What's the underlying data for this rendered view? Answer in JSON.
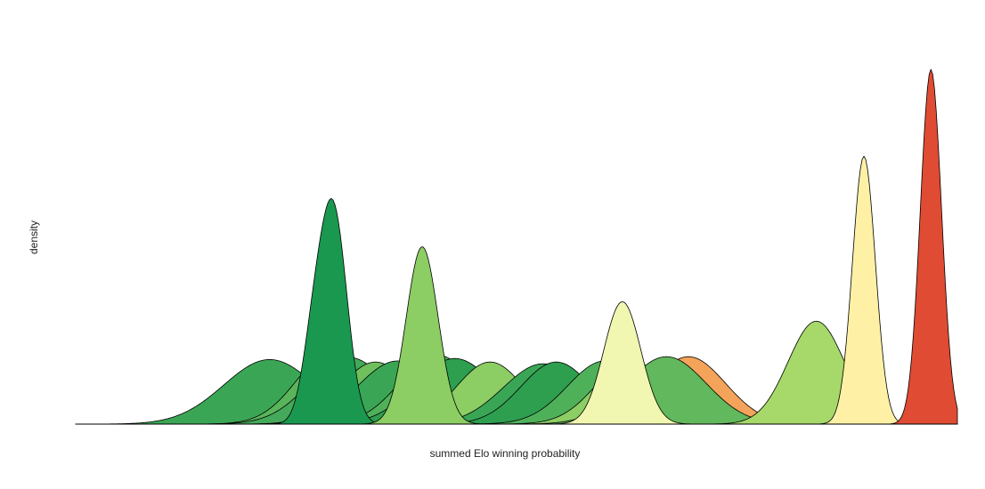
{
  "chart_data": {
    "type": "area",
    "xlabel": "summed Elo winning probability",
    "ylabel": "density",
    "grid": false,
    "legend": "none",
    "xlim": [
      0,
      1
    ],
    "ylim": [
      0,
      1
    ],
    "series": [
      {
        "color": "#f4a35a",
        "components": [
          {
            "mean": 0.695,
            "sd": 0.042,
            "height": 0.19
          }
        ]
      },
      {
        "color": "#3aa655",
        "components": [
          {
            "mean": 0.22,
            "sd": 0.052,
            "height": 0.182
          }
        ]
      },
      {
        "color": "#5ab55a",
        "components": [
          {
            "mean": 0.29,
            "sd": 0.04,
            "height": 0.2
          }
        ]
      },
      {
        "color": "#44a95a",
        "components": [
          {
            "mean": 0.31,
            "sd": 0.045,
            "height": 0.188
          }
        ]
      },
      {
        "color": "#6fbf5d",
        "components": [
          {
            "mean": 0.34,
            "sd": 0.04,
            "height": 0.175
          }
        ]
      },
      {
        "color": "#3aa655",
        "components": [
          {
            "mean": 0.365,
            "sd": 0.045,
            "height": 0.178
          }
        ]
      },
      {
        "color": "#4fb05a",
        "components": [
          {
            "mean": 0.41,
            "sd": 0.042,
            "height": 0.195
          }
        ]
      },
      {
        "color": "#2e9e4f",
        "components": [
          {
            "mean": 0.43,
            "sd": 0.045,
            "height": 0.185
          }
        ]
      },
      {
        "color": "#8ccd64",
        "components": [
          {
            "mean": 0.47,
            "sd": 0.038,
            "height": 0.175
          }
        ]
      },
      {
        "color": "#3aa655",
        "components": [
          {
            "mean": 0.53,
            "sd": 0.045,
            "height": 0.17
          }
        ]
      },
      {
        "color": "#2e9e4f",
        "components": [
          {
            "mean": 0.545,
            "sd": 0.04,
            "height": 0.175
          }
        ]
      },
      {
        "color": "#a6d96a",
        "components": [
          {
            "mean": 0.6,
            "sd": 0.04,
            "height": 0.175
          }
        ]
      },
      {
        "color": "#4fb05a",
        "components": [
          {
            "mean": 0.6,
            "sd": 0.042,
            "height": 0.178
          }
        ]
      },
      {
        "color": "#8ccd64",
        "components": [
          {
            "mean": 0.63,
            "sd": 0.04,
            "height": 0.18
          }
        ]
      },
      {
        "color": "#62b85c",
        "components": [
          {
            "mean": 0.67,
            "sd": 0.045,
            "height": 0.19
          }
        ]
      },
      {
        "color": "#1a9850",
        "components": [
          {
            "mean": 0.293,
            "sd": 0.015,
            "height": 0.58
          },
          {
            "mean": 0.27,
            "sd": 0.013,
            "height": 0.22
          }
        ]
      },
      {
        "color": "#8ccd64",
        "components": [
          {
            "mean": 0.393,
            "sd": 0.018,
            "height": 0.5
          }
        ]
      },
      {
        "color": "#f1f7b0",
        "components": [
          {
            "mean": 0.62,
            "sd": 0.021,
            "height": 0.345
          }
        ]
      },
      {
        "color": "#a6d96a",
        "components": [
          {
            "mean": 0.84,
            "sd": 0.032,
            "height": 0.29
          }
        ]
      },
      {
        "color": "#fef1a6",
        "components": [
          {
            "mean": 0.894,
            "sd": 0.013,
            "height": 0.755
          }
        ]
      },
      {
        "color": "#e04b34",
        "components": [
          {
            "mean": 0.97,
            "sd": 0.012,
            "height": 1.0
          }
        ]
      }
    ]
  }
}
